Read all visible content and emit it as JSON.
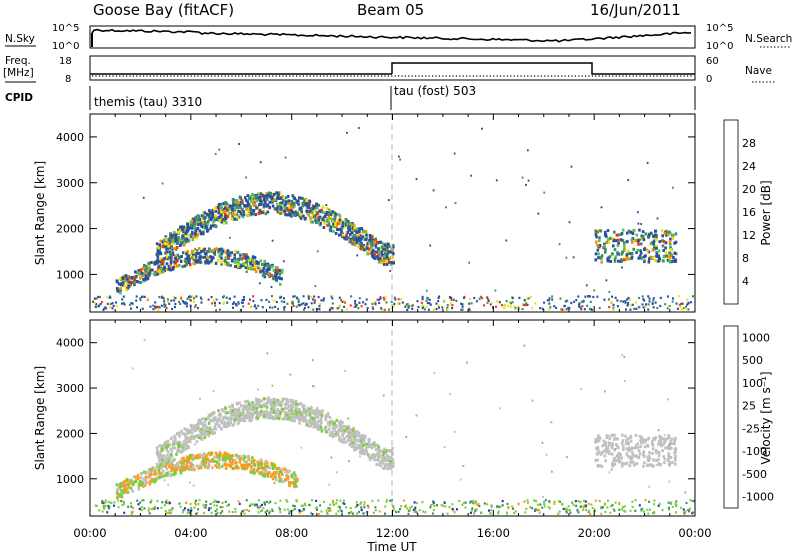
{
  "header": {
    "station": "Goose Bay (fitACF)",
    "beam": "Beam 05",
    "date": "16/Jun/2011"
  },
  "strips": {
    "noise": {
      "left_label": "N.Sky",
      "right_label": "N.Search",
      "ticks": [
        "10^5",
        "10^0"
      ]
    },
    "freq": {
      "left_label_1": "Freq.",
      "left_label_2": "[MHz]",
      "right_label": "Nave",
      "left_ticks": [
        "18",
        "8"
      ],
      "right_ticks": [
        "60",
        "0"
      ]
    },
    "cpid": {
      "label": "CPID",
      "segments": [
        {
          "label": "themis (tau) 3310",
          "start_hour": 0
        },
        {
          "label": "tau (fost) 503",
          "start_hour": 12
        }
      ]
    }
  },
  "chart_data": [
    {
      "type": "heatmap",
      "title": "",
      "xlabel": "Time UT",
      "ylabel": "Slant Range [km]",
      "x_ticks": [
        "00:00",
        "04:00",
        "08:00",
        "12:00",
        "16:00",
        "20:00",
        "00:00"
      ],
      "x_range_hours": [
        0,
        24
      ],
      "y_ticks": [
        1000,
        2000,
        3000,
        4000
      ],
      "y_range_km": [
        180,
        4500
      ],
      "colorbar_label": "Power [dB]",
      "colorbar_ticks": [
        "4",
        "8",
        "12",
        "16",
        "20",
        "24",
        "28"
      ],
      "colorbar_colors": [
        "#0000ee",
        "#2a4ea0",
        "#3c8c64",
        "#5ac25a",
        "#f2e000",
        "#ff8c00",
        "#ff3300",
        "#ee0000"
      ],
      "features": [
        {
          "name": "lower band",
          "start_hour": 1.0,
          "end_hour": 7.6,
          "range_km_start": 700,
          "range_km_end": 1500
        },
        {
          "name": "upper arc",
          "start_hour": 2.6,
          "end_hour": 12.0,
          "range_km_start": 1500,
          "range_km_end": 2600
        },
        {
          "name": "late patch",
          "start_hour": 20.0,
          "end_hour": 23.2,
          "range_km_start": 1300,
          "range_km_end": 2000
        }
      ]
    },
    {
      "type": "heatmap",
      "title": "",
      "xlabel": "Time UT",
      "ylabel": "Slant Range [km]",
      "x_ticks": [
        "00:00",
        "04:00",
        "08:00",
        "12:00",
        "16:00",
        "20:00",
        "00:00"
      ],
      "x_range_hours": [
        0,
        24
      ],
      "y_ticks": [
        1000,
        2000,
        3000,
        4000
      ],
      "y_range_km": [
        180,
        4500
      ],
      "colorbar_label": "Velocity [m s⁻¹]",
      "colorbar_ticks": [
        "1000",
        "500",
        "100",
        "25",
        "-25",
        "-100",
        "-500",
        "-1000"
      ],
      "colorbar_colors": [
        "#2233bb",
        "#3c8c64",
        "#7ccd3c",
        "#c0c0c0",
        "#c0c0c0",
        "#ff9a1a",
        "#ff5500",
        "#e00000"
      ],
      "features": [
        {
          "name": "lower band",
          "start_hour": 1.0,
          "end_hour": 8.2,
          "range_km_start": 700,
          "range_km_end": 1500
        },
        {
          "name": "upper arc",
          "start_hour": 2.6,
          "end_hour": 12.0,
          "range_km_start": 1500,
          "range_km_end": 2600
        },
        {
          "name": "late patch",
          "start_hour": 20.0,
          "end_hour": 23.2,
          "range_km_start": 1300,
          "range_km_end": 2000
        }
      ]
    }
  ]
}
